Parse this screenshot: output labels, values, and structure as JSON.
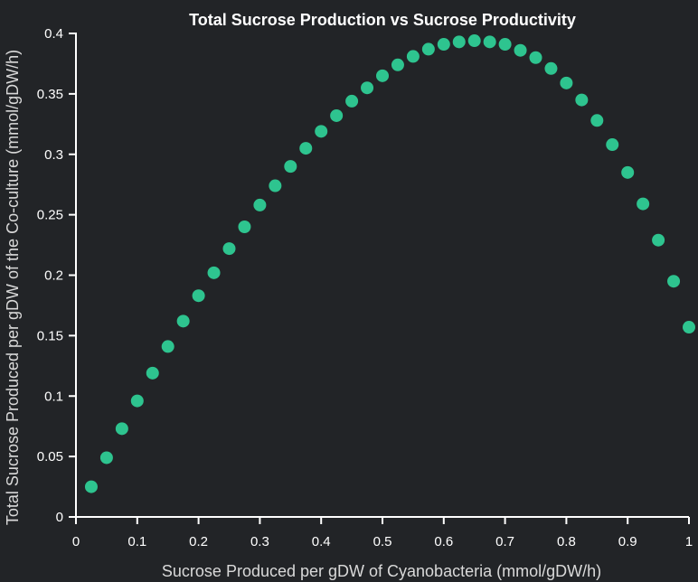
{
  "chart_data": {
    "type": "scatter",
    "title": "Total Sucrose Production vs Sucrose Productivity",
    "xlabel": "Sucrose Produced per gDW of Cyanobacteria (mmol/gDW/h)",
    "ylabel": "Total Sucrose Produced per gDW of the Co-culture (mmol/gDW/h)",
    "xlim": [
      0,
      1
    ],
    "ylim": [
      0,
      0.4
    ],
    "xticks": [
      0,
      0.1,
      0.2,
      0.3,
      0.4,
      0.5,
      0.6,
      0.7,
      0.8,
      0.9,
      1
    ],
    "xtick_labels": [
      "0",
      "0.1",
      "0.2",
      "0.3",
      "0.4",
      "0.5",
      "0.6",
      "0.7",
      "0.8",
      "0.9",
      "1"
    ],
    "yticks": [
      0,
      0.05,
      0.1,
      0.15,
      0.2,
      0.25,
      0.3,
      0.35,
      0.4
    ],
    "ytick_labels": [
      "0",
      "0.05",
      "0.1",
      "0.15",
      "0.2",
      "0.25",
      "0.3",
      "0.35",
      "0.4"
    ],
    "grid": false,
    "marker_color": "#2ec48f",
    "background_color": "#222427",
    "series": [
      {
        "x": [
          0.025,
          0.05,
          0.075,
          0.1,
          0.125,
          0.15,
          0.175,
          0.2,
          0.225,
          0.25,
          0.275,
          0.3,
          0.325,
          0.35,
          0.375,
          0.4,
          0.425,
          0.45,
          0.475,
          0.5,
          0.525,
          0.55,
          0.575,
          0.6,
          0.625,
          0.65,
          0.675,
          0.7,
          0.725,
          0.75,
          0.775,
          0.8,
          0.825,
          0.85,
          0.875,
          0.9,
          0.925,
          0.95,
          0.975,
          1.0
        ],
        "y": [
          0.025,
          0.049,
          0.073,
          0.096,
          0.119,
          0.141,
          0.162,
          0.183,
          0.202,
          0.222,
          0.24,
          0.258,
          0.274,
          0.29,
          0.305,
          0.319,
          0.332,
          0.344,
          0.355,
          0.365,
          0.374,
          0.381,
          0.387,
          0.391,
          0.393,
          0.394,
          0.393,
          0.391,
          0.386,
          0.38,
          0.371,
          0.359,
          0.345,
          0.328,
          0.308,
          0.285,
          0.259,
          0.229,
          0.195,
          0.157
        ]
      }
    ]
  }
}
